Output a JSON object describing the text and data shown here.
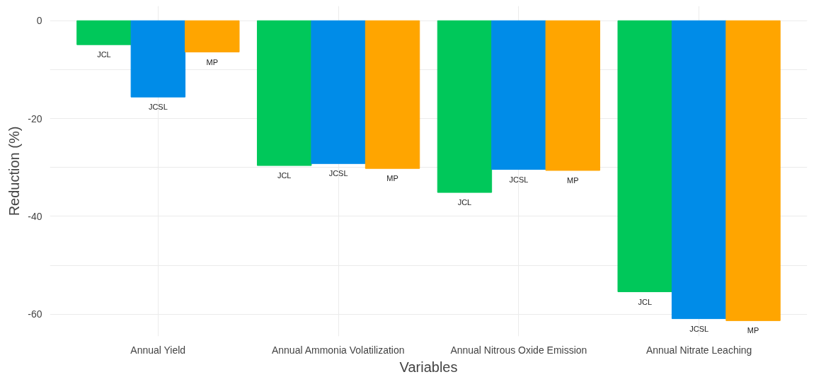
{
  "chart_data": {
    "type": "bar",
    "xlabel": "Variables",
    "ylabel": "Reduction (%)",
    "categories": [
      "Annual Yield",
      "Annual Ammonia Volatilization",
      "Annual Nitrous Oxide Emission",
      "Annual Nitrate Leaching"
    ],
    "series": [
      {
        "name": "JCL",
        "color": "#00c85a",
        "values": [
          -4.9,
          -29.6,
          -35.1,
          -55.4
        ]
      },
      {
        "name": "JCSL",
        "color": "#008ce8",
        "values": [
          -15.6,
          -29.2,
          -30.4,
          -60.9
        ]
      },
      {
        "name": "MP",
        "color": "#ffa500",
        "values": [
          -6.4,
          -30.2,
          -30.6,
          -61.3
        ]
      }
    ],
    "ylim": [
      -64.5,
      3
    ],
    "yticks": [
      {
        "value": -60,
        "label": "-60"
      },
      {
        "value": -50,
        "label": null
      },
      {
        "value": -40,
        "label": "-40"
      },
      {
        "value": -30,
        "label": null
      },
      {
        "value": -20,
        "label": "-20"
      },
      {
        "value": -10,
        "label": null
      },
      0
    ],
    "grid": true
  }
}
